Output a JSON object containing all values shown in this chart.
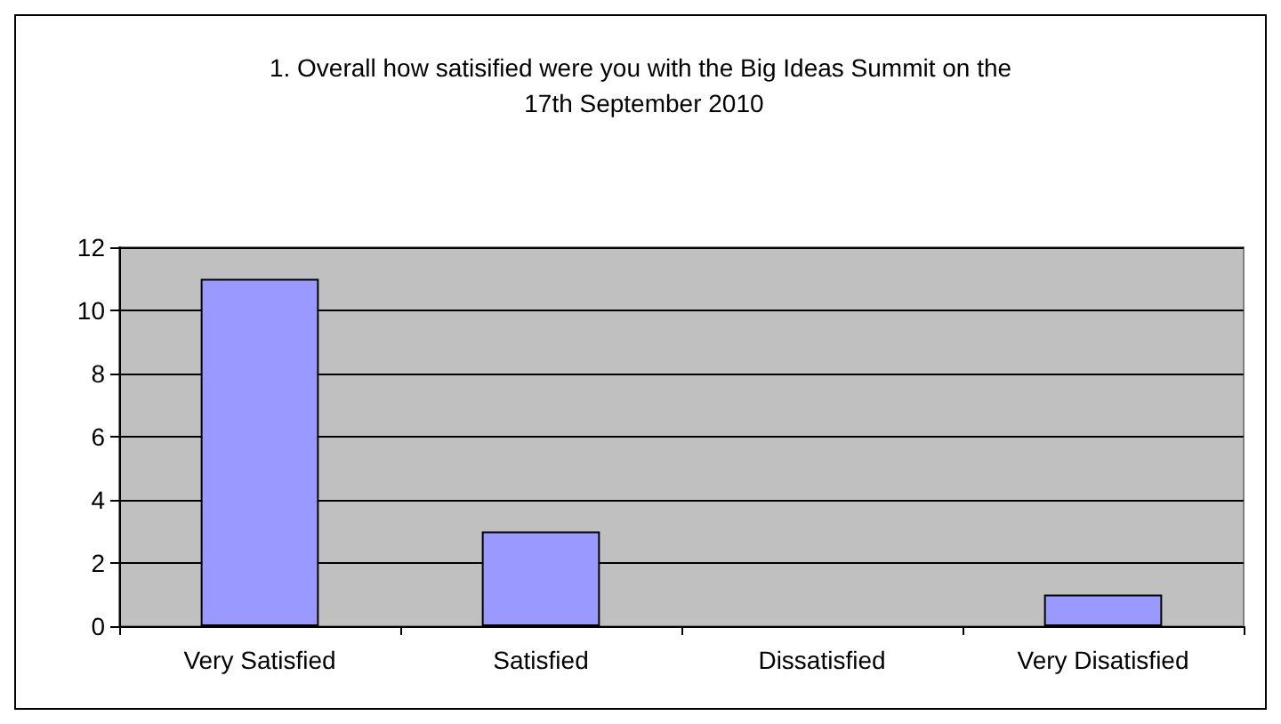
{
  "chart_data": {
    "type": "bar",
    "title": "1. Overall how satisified were you with the Big Ideas Summit on the 17th September 2010",
    "categories": [
      "Very Satisfied",
      "Satisfied",
      "Dissatisfied",
      "Very Disatisfied"
    ],
    "values": [
      11,
      3,
      0,
      1
    ],
    "color": "#9999ff",
    "ylim": [
      0,
      12
    ],
    "yticks": [
      0,
      2,
      4,
      6,
      8,
      10,
      12
    ],
    "grid": "y"
  }
}
